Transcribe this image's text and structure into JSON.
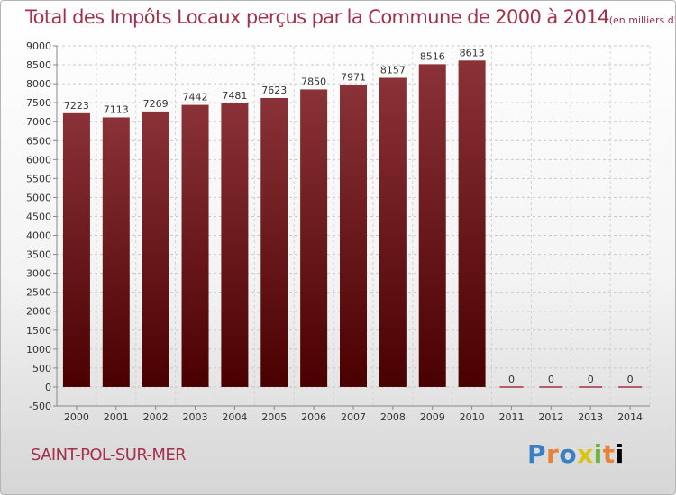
{
  "header": {
    "title": "Total des Impôts Locaux perçus par la Commune de 2000 à 2014",
    "unit": "(en milliers d'€)"
  },
  "footer": {
    "commune": "SAINT-POL-SUR-MER",
    "brand_letters": [
      "P",
      "r",
      "o",
      "x",
      "i",
      "t",
      "i"
    ]
  },
  "colors": {
    "title": "#a5304a",
    "bar_top": "#8a3237",
    "bar_bottom": "#4a0000",
    "zero_line": "#a5304a"
  },
  "chart_data": {
    "type": "bar",
    "categories": [
      "2000",
      "2001",
      "2002",
      "2003",
      "2004",
      "2005",
      "2006",
      "2007",
      "2008",
      "2009",
      "2010",
      "2011",
      "2012",
      "2013",
      "2014"
    ],
    "values": [
      7223,
      7113,
      7269,
      7442,
      7481,
      7623,
      7850,
      7971,
      8157,
      8516,
      8613,
      0,
      0,
      0,
      0
    ],
    "data_labels": [
      "7223",
      "7113",
      "7269",
      "7442",
      "7481",
      "7623",
      "7850",
      "7971",
      "8157",
      "8516",
      "8613",
      "0",
      "0",
      "0",
      "0"
    ],
    "yticks": [
      -500,
      0,
      500,
      1000,
      1500,
      2000,
      2500,
      3000,
      3500,
      4000,
      4500,
      5000,
      5500,
      6000,
      6500,
      7000,
      7500,
      8000,
      8500,
      9000
    ],
    "ylim": [
      -500,
      9000
    ],
    "grid": true,
    "legend": "none"
  }
}
